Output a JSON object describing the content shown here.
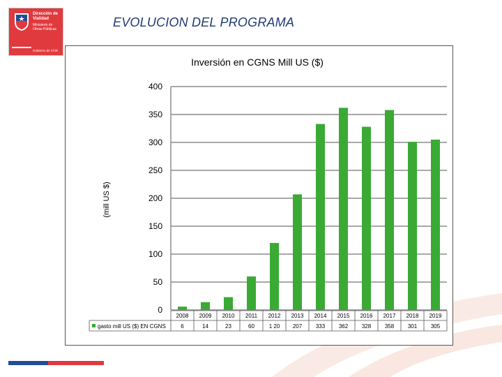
{
  "header": {
    "title": "EVOLUCION DEL PROGRAMA",
    "logo": {
      "org_line1": "Dirección de Vialidad",
      "org_line2": "Ministerio de Obras Públicas",
      "govt": "Gobierno de Chile"
    }
  },
  "colors": {
    "bar": "#3aaa35",
    "title": "#1f3b73",
    "brand_red": "#e03a3e",
    "brand_blue": "#1f4e96"
  },
  "chart_data": {
    "type": "bar",
    "title": "Inversión en CGNS  Mill US ($)",
    "xlabel": "",
    "ylabel": "(mill US $)",
    "ylim": [
      0,
      400
    ],
    "yticks": [
      "0",
      "50",
      "100",
      "150",
      "200",
      "250",
      "300",
      "350",
      "400"
    ],
    "grid": true,
    "categories": [
      "2008",
      "2009",
      "2010",
      "2011",
      "2012",
      "2013",
      "2014",
      "2015",
      "2016",
      "2017",
      "2018",
      "2019"
    ],
    "series": [
      {
        "name": "gasto mill US ($) EN CGNS",
        "values": [
          6,
          14,
          23,
          60,
          120,
          207,
          333,
          362,
          328,
          358,
          301,
          305
        ],
        "value_labels": [
          "6",
          "14",
          "23",
          "60",
          "1 20",
          "207",
          "333",
          "362",
          "328",
          "358",
          "301",
          "305"
        ]
      }
    ],
    "legend": "data-table-left"
  }
}
